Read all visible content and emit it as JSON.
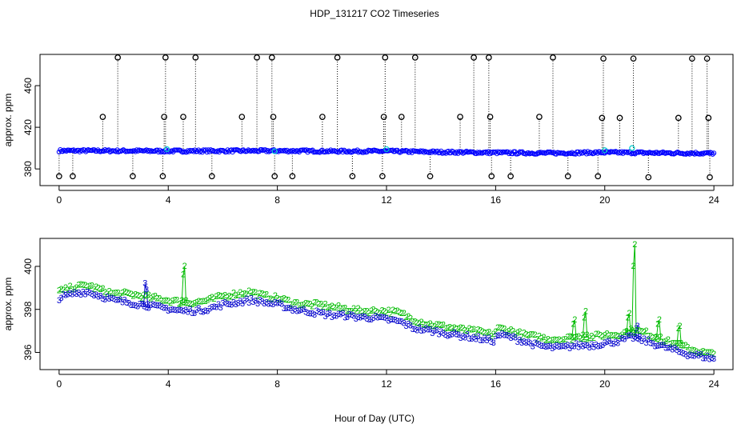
{
  "figure": {
    "title": "HDP_131217  CO2 Timeseries",
    "xlabel": "Hour of Day (UTC)"
  },
  "chart_data": [
    {
      "type": "scatter",
      "panel": "top",
      "ylabel": "approx. ppm",
      "xlim": [
        -0.7,
        24.7
      ],
      "ylim": [
        364,
        490
      ],
      "xticks": [
        0,
        4,
        8,
        12,
        16,
        20,
        24
      ],
      "yticks": [
        380,
        420,
        460
      ],
      "grid": false,
      "colors": {
        "main": "#0000ff",
        "highlight": "#00cccc",
        "outlier": "#000000",
        "drop": "#000000"
      },
      "baseline": {
        "x": [
          0,
          2,
          4,
          6,
          8,
          10,
          12,
          14,
          16,
          18,
          20,
          22,
          24
        ],
        "y": [
          397.5,
          397.4,
          397.2,
          397.3,
          397.4,
          397,
          397,
          396.2,
          395.6,
          395.2,
          395.8,
          395.4,
          395
        ]
      },
      "highlights": [
        {
          "x": 3.95,
          "y": 399
        },
        {
          "x": 7.9,
          "y": 397
        },
        {
          "x": 12.0,
          "y": 399
        },
        {
          "x": 20.0,
          "y": 398
        },
        {
          "x": 21.0,
          "y": 400
        }
      ],
      "outliers": [
        {
          "x": 0.0,
          "y": 373
        },
        {
          "x": 0.5,
          "y": 373
        },
        {
          "x": 1.6,
          "y": 430
        },
        {
          "x": 2.15,
          "y": 487
        },
        {
          "x": 2.7,
          "y": 373
        },
        {
          "x": 3.8,
          "y": 373
        },
        {
          "x": 3.85,
          "y": 430
        },
        {
          "x": 3.9,
          "y": 487
        },
        {
          "x": 4.55,
          "y": 430
        },
        {
          "x": 5.0,
          "y": 487
        },
        {
          "x": 5.6,
          "y": 373
        },
        {
          "x": 6.7,
          "y": 430
        },
        {
          "x": 7.25,
          "y": 487
        },
        {
          "x": 7.8,
          "y": 487
        },
        {
          "x": 7.85,
          "y": 430
        },
        {
          "x": 7.9,
          "y": 373
        },
        {
          "x": 8.55,
          "y": 373
        },
        {
          "x": 9.65,
          "y": 430
        },
        {
          "x": 10.2,
          "y": 487
        },
        {
          "x": 10.75,
          "y": 373
        },
        {
          "x": 11.85,
          "y": 373
        },
        {
          "x": 11.9,
          "y": 430
        },
        {
          "x": 11.95,
          "y": 487
        },
        {
          "x": 12.55,
          "y": 430
        },
        {
          "x": 13.05,
          "y": 487
        },
        {
          "x": 13.6,
          "y": 373
        },
        {
          "x": 14.7,
          "y": 430
        },
        {
          "x": 15.2,
          "y": 487
        },
        {
          "x": 15.75,
          "y": 487
        },
        {
          "x": 15.8,
          "y": 430
        },
        {
          "x": 15.85,
          "y": 373
        },
        {
          "x": 16.55,
          "y": 373
        },
        {
          "x": 17.6,
          "y": 430
        },
        {
          "x": 18.1,
          "y": 487
        },
        {
          "x": 18.65,
          "y": 373
        },
        {
          "x": 19.75,
          "y": 373
        },
        {
          "x": 19.9,
          "y": 429
        },
        {
          "x": 19.95,
          "y": 486
        },
        {
          "x": 20.55,
          "y": 429
        },
        {
          "x": 21.05,
          "y": 486
        },
        {
          "x": 21.6,
          "y": 372
        },
        {
          "x": 22.7,
          "y": 429
        },
        {
          "x": 23.2,
          "y": 486
        },
        {
          "x": 23.75,
          "y": 486
        },
        {
          "x": 23.8,
          "y": 429
        },
        {
          "x": 23.85,
          "y": 372
        }
      ]
    },
    {
      "type": "scatter",
      "panel": "bottom",
      "ylabel": "approx. ppm",
      "xlim": [
        -0.7,
        24.7
      ],
      "ylim": [
        395.2,
        401.3
      ],
      "xticks": [
        0,
        4,
        8,
        12,
        16,
        20,
        24
      ],
      "yticks": [
        396,
        398,
        400
      ],
      "grid": false,
      "series": [
        {
          "marker": "2",
          "color": "#00bb00",
          "x": [
            0,
            0.5,
            1,
            1.5,
            2,
            2.5,
            3,
            3.5,
            4,
            4.5,
            5,
            5.5,
            6,
            6.5,
            7,
            7.5,
            7.95,
            8.05,
            8.5,
            9,
            9.5,
            10,
            10.5,
            11,
            11.5,
            12,
            12.5,
            13,
            13.5,
            14,
            14.5,
            15,
            15.5,
            15.9,
            16.1,
            16.5,
            17,
            17.5,
            18,
            18.5,
            19,
            19.5,
            20,
            20.5,
            21,
            21.5,
            22,
            22.5,
            23,
            23.5,
            23.9
          ],
          "y": [
            398.8,
            399.0,
            399.1,
            398.9,
            398.7,
            398.7,
            398.6,
            398.5,
            398.4,
            398.3,
            398.3,
            398.4,
            398.6,
            398.7,
            398.8,
            398.6,
            398.5,
            398.5,
            398.3,
            398.2,
            398.2,
            398.1,
            398.0,
            397.9,
            397.9,
            397.9,
            397.8,
            397.5,
            397.3,
            397.2,
            397.1,
            397.0,
            396.9,
            396.8,
            397.1,
            397.0,
            396.8,
            396.7,
            396.6,
            396.6,
            396.7,
            396.7,
            396.8,
            396.8,
            397.0,
            396.9,
            396.6,
            396.4,
            396.2,
            396.0,
            395.9
          ]
        },
        {
          "marker": "3",
          "color": "#0000cc",
          "x": [
            0,
            0.5,
            1,
            1.5,
            2,
            2.5,
            3,
            3.5,
            4,
            4.5,
            5,
            5.5,
            6,
            6.5,
            7,
            7.5,
            7.95,
            8.05,
            8.5,
            9,
            9.5,
            10,
            10.5,
            11,
            11.5,
            12,
            12.5,
            13,
            13.5,
            14,
            14.5,
            15,
            15.5,
            15.9,
            16.1,
            16.5,
            17,
            17.5,
            18,
            18.5,
            19,
            19.5,
            20,
            20.5,
            21,
            21.5,
            22,
            22.5,
            23,
            23.5,
            23.9
          ],
          "y": [
            398.5,
            398.7,
            398.8,
            398.6,
            398.4,
            398.3,
            398.2,
            398.1,
            398.0,
            397.9,
            397.9,
            398.0,
            398.2,
            398.3,
            398.4,
            398.3,
            398.2,
            398.2,
            398.0,
            397.9,
            397.8,
            397.7,
            397.7,
            397.6,
            397.6,
            397.5,
            397.4,
            397.1,
            397.0,
            396.9,
            396.8,
            396.7,
            396.6,
            396.5,
            396.8,
            396.7,
            396.5,
            396.3,
            396.2,
            396.2,
            396.3,
            396.3,
            396.4,
            396.5,
            396.7,
            396.5,
            396.3,
            396.1,
            395.9,
            395.8,
            395.7
          ]
        }
      ],
      "spikes": [
        {
          "series": "3",
          "x": [
            3.1,
            3.15,
            3.2,
            3.25
          ],
          "y": [
            398.2,
            399.2,
            398.9,
            398.2
          ]
        },
        {
          "series": "2",
          "x": [
            4.5,
            4.55,
            4.6,
            4.65
          ],
          "y": [
            398.4,
            399.6,
            400.0,
            398.4
          ]
        },
        {
          "series": "2",
          "x": [
            18.8,
            18.85,
            18.9,
            18.95
          ],
          "y": [
            396.7,
            397.3,
            397.5,
            396.7
          ]
        },
        {
          "series": "2",
          "x": [
            19.2,
            19.25,
            19.3,
            19.35
          ],
          "y": [
            396.8,
            397.6,
            397.9,
            396.8
          ]
        },
        {
          "series": "2",
          "x": [
            20.8,
            20.85,
            20.9,
            20.95
          ],
          "y": [
            396.9,
            397.6,
            397.8,
            396.9
          ]
        },
        {
          "series": "2",
          "x": [
            21.0,
            21.05,
            21.1,
            21.15
          ],
          "y": [
            397.0,
            400.0,
            401.0,
            397.0
          ]
        },
        {
          "series": "3",
          "x": [
            21.1,
            21.15,
            21.2,
            21.25
          ],
          "y": [
            396.7,
            397.1,
            397.2,
            396.6
          ]
        },
        {
          "series": "2",
          "x": [
            21.9,
            21.95,
            22.0,
            22.05
          ],
          "y": [
            396.7,
            397.3,
            397.5,
            396.7
          ]
        },
        {
          "series": "2",
          "x": [
            22.65,
            22.7,
            22.75,
            22.8
          ],
          "y": [
            396.4,
            397.1,
            397.2,
            396.4
          ]
        }
      ]
    }
  ]
}
